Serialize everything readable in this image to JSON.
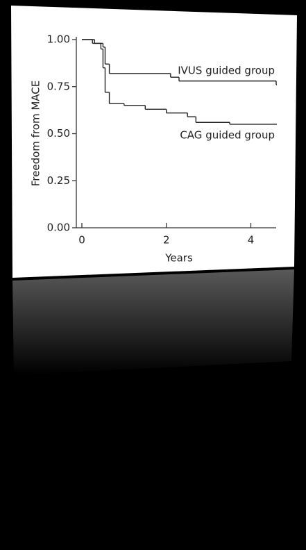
{
  "chart_data": {
    "type": "step",
    "x_label": "Years",
    "y_label": "Freedom from MACE",
    "xlim": [
      0,
      4.6
    ],
    "xticks": [
      0,
      2,
      4
    ],
    "ylim": [
      0,
      1
    ],
    "yticks": [
      {
        "value": 0,
        "label": "0.00"
      },
      {
        "value": 0.25,
        "label": "0.25"
      },
      {
        "value": 0.5,
        "label": "0.50"
      },
      {
        "value": 0.75,
        "label": "0.75"
      },
      {
        "value": 1,
        "label": "1.00"
      }
    ],
    "series": [
      {
        "name": "IVUS guided group",
        "color": "#222222",
        "x": [
          0,
          0.3,
          0.5,
          0.55,
          0.65,
          2.1,
          2.3,
          4.6
        ],
        "values": [
          1,
          0.98,
          0.96,
          0.87,
          0.82,
          0.8,
          0.78,
          0.76
        ]
      },
      {
        "name": "CAG guided group",
        "color": "#222222",
        "x": [
          0,
          0.25,
          0.45,
          0.5,
          0.55,
          0.65,
          1.0,
          1.5,
          2.0,
          2.5,
          2.7,
          3.5,
          4.6
        ],
        "values": [
          1,
          0.98,
          0.95,
          0.85,
          0.72,
          0.66,
          0.65,
          0.63,
          0.61,
          0.59,
          0.56,
          0.55,
          0.55
        ]
      }
    ]
  }
}
